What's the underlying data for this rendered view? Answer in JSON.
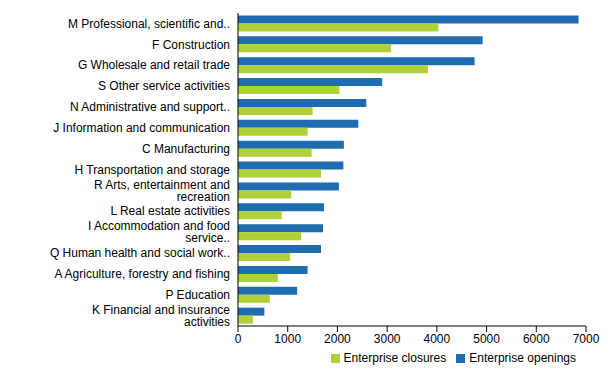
{
  "chart_data": {
    "type": "bar",
    "orientation": "horizontal",
    "categories": [
      "M Professional, scientific and..",
      "F Construction",
      "G Wholesale and retail trade",
      "S Other service activities",
      "N Administrative and support..",
      "J Information and communication",
      "C Manufacturing",
      "H Transportation and storage",
      "R Arts, entertainment and recreation",
      "L Real estate activities",
      "I Accommodation and food service..",
      "Q Human health and social work..",
      "A Agriculture, forestry and fishing",
      "P Education",
      "K Financial and insurance activities"
    ],
    "series": [
      {
        "name": "Enterprise openings",
        "color": "#1f6db0",
        "values": [
          6850,
          4920,
          4760,
          2900,
          2580,
          2420,
          2130,
          2120,
          2030,
          1730,
          1710,
          1670,
          1400,
          1190,
          530
        ]
      },
      {
        "name": "Enterprise closures",
        "color": "#add136",
        "values": [
          4030,
          3080,
          3820,
          2040,
          1500,
          1400,
          1480,
          1670,
          1070,
          880,
          1270,
          1050,
          800,
          640,
          300
        ]
      }
    ],
    "xlim": [
      0,
      7000
    ],
    "xticks": [
      0,
      1000,
      2000,
      3000,
      4000,
      5000,
      6000,
      7000
    ],
    "grid": false,
    "legend": "bottom"
  }
}
